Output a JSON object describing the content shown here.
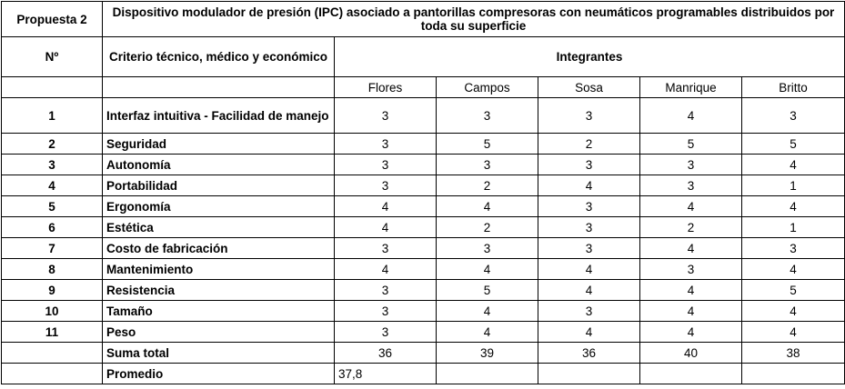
{
  "header": {
    "proposal_label": "Propuesta 2",
    "title": "Dispositivo modulador de presión (IPC) asociado a pantorillas compresoras con neumáticos programables distribuidos por toda su superficie",
    "number_label": "Nº",
    "criteria_label": "Criterio técnico, médico y económico",
    "members_label": "Integrantes"
  },
  "members": [
    "Flores",
    "Campos",
    "Sosa",
    "Manrique",
    "Britto"
  ],
  "rows": [
    {
      "n": "1",
      "criterion": "Interfaz intuitiva - Facilidad de manejo",
      "scores": [
        "3",
        "3",
        "3",
        "4",
        "3"
      ]
    },
    {
      "n": "2",
      "criterion": "Seguridad",
      "scores": [
        "3",
        "5",
        "2",
        "5",
        "5"
      ]
    },
    {
      "n": "3",
      "criterion": "Autonomía",
      "scores": [
        "3",
        "3",
        "3",
        "3",
        "4"
      ]
    },
    {
      "n": "4",
      "criterion": "Portabilidad",
      "scores": [
        "3",
        "2",
        "4",
        "3",
        "1"
      ]
    },
    {
      "n": "5",
      "criterion": "Ergonomía",
      "scores": [
        "4",
        "4",
        "3",
        "4",
        "4"
      ]
    },
    {
      "n": "6",
      "criterion": "Estética",
      "scores": [
        "4",
        "2",
        "3",
        "2",
        "1"
      ]
    },
    {
      "n": "7",
      "criterion": "Costo de fabricación",
      "scores": [
        "3",
        "3",
        "3",
        "4",
        "3"
      ]
    },
    {
      "n": "8",
      "criterion": "Mantenimiento",
      "scores": [
        "4",
        "4",
        "4",
        "3",
        "4"
      ]
    },
    {
      "n": "9",
      "criterion": "Resistencia",
      "scores": [
        "3",
        "5",
        "4",
        "4",
        "5"
      ]
    },
    {
      "n": "10",
      "criterion": "Tamaño",
      "scores": [
        "3",
        "4",
        "3",
        "4",
        "4"
      ]
    },
    {
      "n": "11",
      "criterion": "Peso",
      "scores": [
        "3",
        "4",
        "4",
        "4",
        "4"
      ]
    }
  ],
  "total": {
    "label": "Suma total",
    "values": [
      "36",
      "39",
      "36",
      "40",
      "38"
    ]
  },
  "average": {
    "label": "Promedio",
    "value": "37,8"
  }
}
